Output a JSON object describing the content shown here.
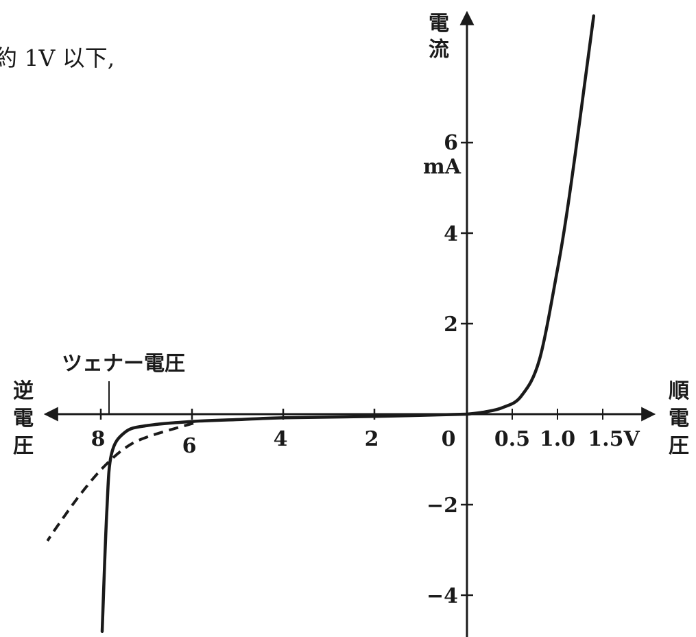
{
  "text_fragment": "約 1V 以下,",
  "chart_data": {
    "type": "line",
    "title": "",
    "axes": {
      "x_reverse_label": [
        "逆",
        "電",
        "圧"
      ],
      "x_forward_label": [
        "順",
        "電",
        "圧"
      ],
      "y_label": [
        "電",
        "流"
      ],
      "y_unit": "mA"
    },
    "x_ticks_reverse": [
      "8",
      "6",
      "4",
      "2"
    ],
    "x_tick_origin": "0",
    "x_ticks_forward": [
      "0.5",
      "1.0",
      "1.5V"
    ],
    "y_ticks_positive": [
      "6",
      "4",
      "2"
    ],
    "y_ticks_negative": [
      "−2",
      "−4"
    ],
    "annotation": "ツェナー電圧",
    "series": [
      {
        "style": "solid",
        "forward_V": [
          0,
          0.2,
          0.4,
          0.6,
          0.8,
          1.0,
          1.1,
          1.2,
          1.3,
          1.4
        ],
        "forward_mA": [
          0,
          0.05,
          0.15,
          0.4,
          1.2,
          3.2,
          4.4,
          5.8,
          7.3,
          8.8
        ],
        "reverse_V": [
          0,
          2,
          4,
          5,
          6,
          7,
          7.5,
          7.8,
          7.9,
          8.0
        ],
        "reverse_mA": [
          0,
          -0.05,
          -0.08,
          -0.12,
          -0.16,
          -0.25,
          -0.4,
          -0.9,
          -2.2,
          -4.8
        ]
      },
      {
        "style": "dashed",
        "reverse_V": [
          6.0,
          7.0,
          7.5,
          8.0,
          8.5,
          9.0,
          9.2
        ],
        "reverse_mA": [
          -0.2,
          -0.5,
          -0.75,
          -1.2,
          -1.8,
          -2.5,
          -2.8
        ]
      }
    ]
  }
}
